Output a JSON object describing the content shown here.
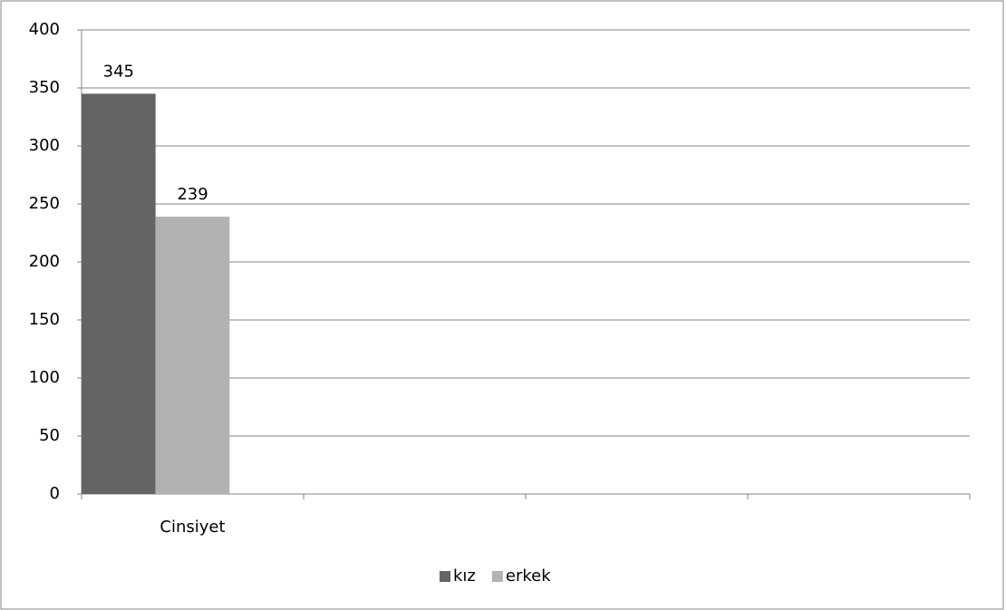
{
  "chart_data": {
    "type": "bar",
    "categories": [
      "Cinsiyet",
      null,
      null,
      null
    ],
    "series": [
      {
        "name": "kız",
        "color": "#646464",
        "values": [
          345,
          null,
          null,
          null
        ]
      },
      {
        "name": "erkek",
        "color": "#b2b2b2",
        "values": [
          239,
          null,
          null,
          null
        ]
      }
    ],
    "ylim": [
      0,
      400
    ],
    "yticks": [
      0,
      50,
      100,
      150,
      200,
      250,
      300,
      350,
      400
    ],
    "grid": true,
    "data_labels": true,
    "legend": "bottom"
  }
}
